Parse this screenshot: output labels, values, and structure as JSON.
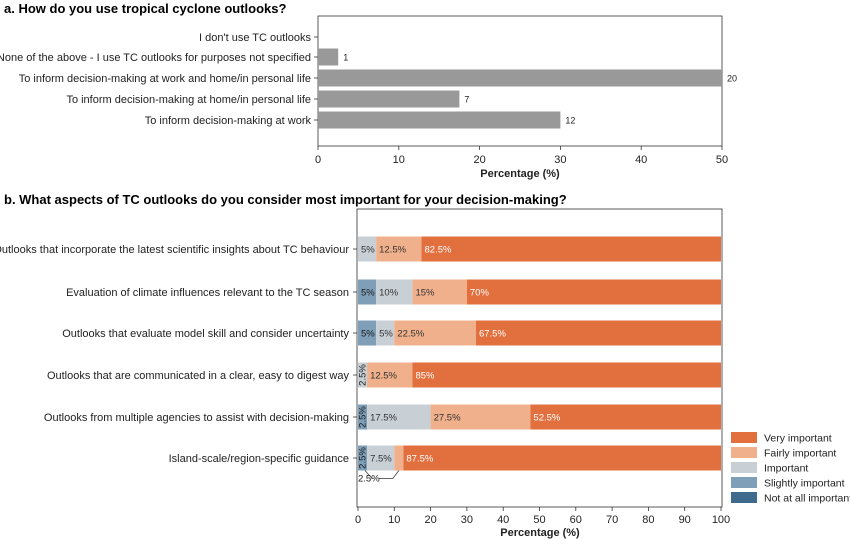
{
  "chart_data": [
    {
      "type": "bar",
      "orientation": "horizontal",
      "title": "a. How do you use tropical cyclone outlooks?",
      "xlabel": "Percentage (%)",
      "ylabel": "",
      "xlim": [
        0,
        50
      ],
      "xticks": [
        "0",
        "10",
        "20",
        "30",
        "40",
        "50"
      ],
      "grid": false,
      "categories": [
        "I don't use TC outlooks",
        "None of the above - I use TC outlooks for purposes not specified",
        "To inform decision-making at work and home/in personal life",
        "To inform decision-making at home/in personal life",
        "To inform decision-making at work"
      ],
      "values": [
        0,
        2.5,
        50,
        17.5,
        30
      ],
      "data_labels": [
        "",
        "1",
        "20",
        "7",
        "12"
      ],
      "color": "#999999"
    },
    {
      "type": "bar",
      "orientation": "horizontal",
      "stacked": true,
      "title": "b. What aspects of TC outlooks do you consider most important for your decision-making?",
      "xlabel": "Percentage (%)",
      "ylabel": "",
      "xlim": [
        0,
        100
      ],
      "xticks": [
        "0",
        "10",
        "20",
        "30",
        "40",
        "50",
        "60",
        "70",
        "80",
        "90",
        "100"
      ],
      "grid": false,
      "legend_position": "bottom-right",
      "categories": [
        "Outlooks that incorporate the latest scientific insights about TC behaviour",
        "Evaluation of climate influences relevant to the TC season",
        "Outlooks that evaluate model skill and consider uncertainty",
        "Outlooks that are communicated in a clear, easy to digest way",
        "Outlooks from multiple agencies to assist with decision-making",
        "Island-scale/region-specific guidance"
      ],
      "series": [
        {
          "name": "Not at all important",
          "color": "#3e6a8e",
          "values": [
            0,
            0,
            0,
            0,
            0,
            0
          ],
          "labels": [
            "",
            "",
            "",
            "",
            "",
            ""
          ]
        },
        {
          "name": "Slightly important",
          "color": "#7f9fb8",
          "values": [
            0,
            5,
            5,
            0,
            2.5,
            2.5
          ],
          "labels": [
            "",
            "5%",
            "5%",
            "",
            "2.5%",
            "2.5%"
          ]
        },
        {
          "name": "Important",
          "color": "#c8d0d6",
          "values": [
            5,
            10,
            5,
            2.5,
            17.5,
            7.5
          ],
          "labels": [
            "5%",
            "10%",
            "5%",
            "2.5%",
            "17.5%",
            "7.5%"
          ]
        },
        {
          "name": "Fairly important",
          "color": "#f0b08c",
          "values": [
            12.5,
            15,
            22.5,
            12.5,
            27.5,
            2.5
          ],
          "labels": [
            "12.5%",
            "15%",
            "22.5%",
            "12.5%",
            "27.5%",
            ""
          ]
        },
        {
          "name": "Very important",
          "color": "#e2703f",
          "values": [
            82.5,
            70,
            67.5,
            85,
            52.5,
            87.5
          ],
          "labels": [
            "82.5%",
            "70%",
            "67.5%",
            "85%",
            "52.5%",
            "87.5%"
          ]
        }
      ],
      "callout_label": "2.5%",
      "legend_entries": [
        "Very important",
        "Fairly important",
        "Important",
        "Slightly important",
        "Not at all important"
      ]
    }
  ]
}
